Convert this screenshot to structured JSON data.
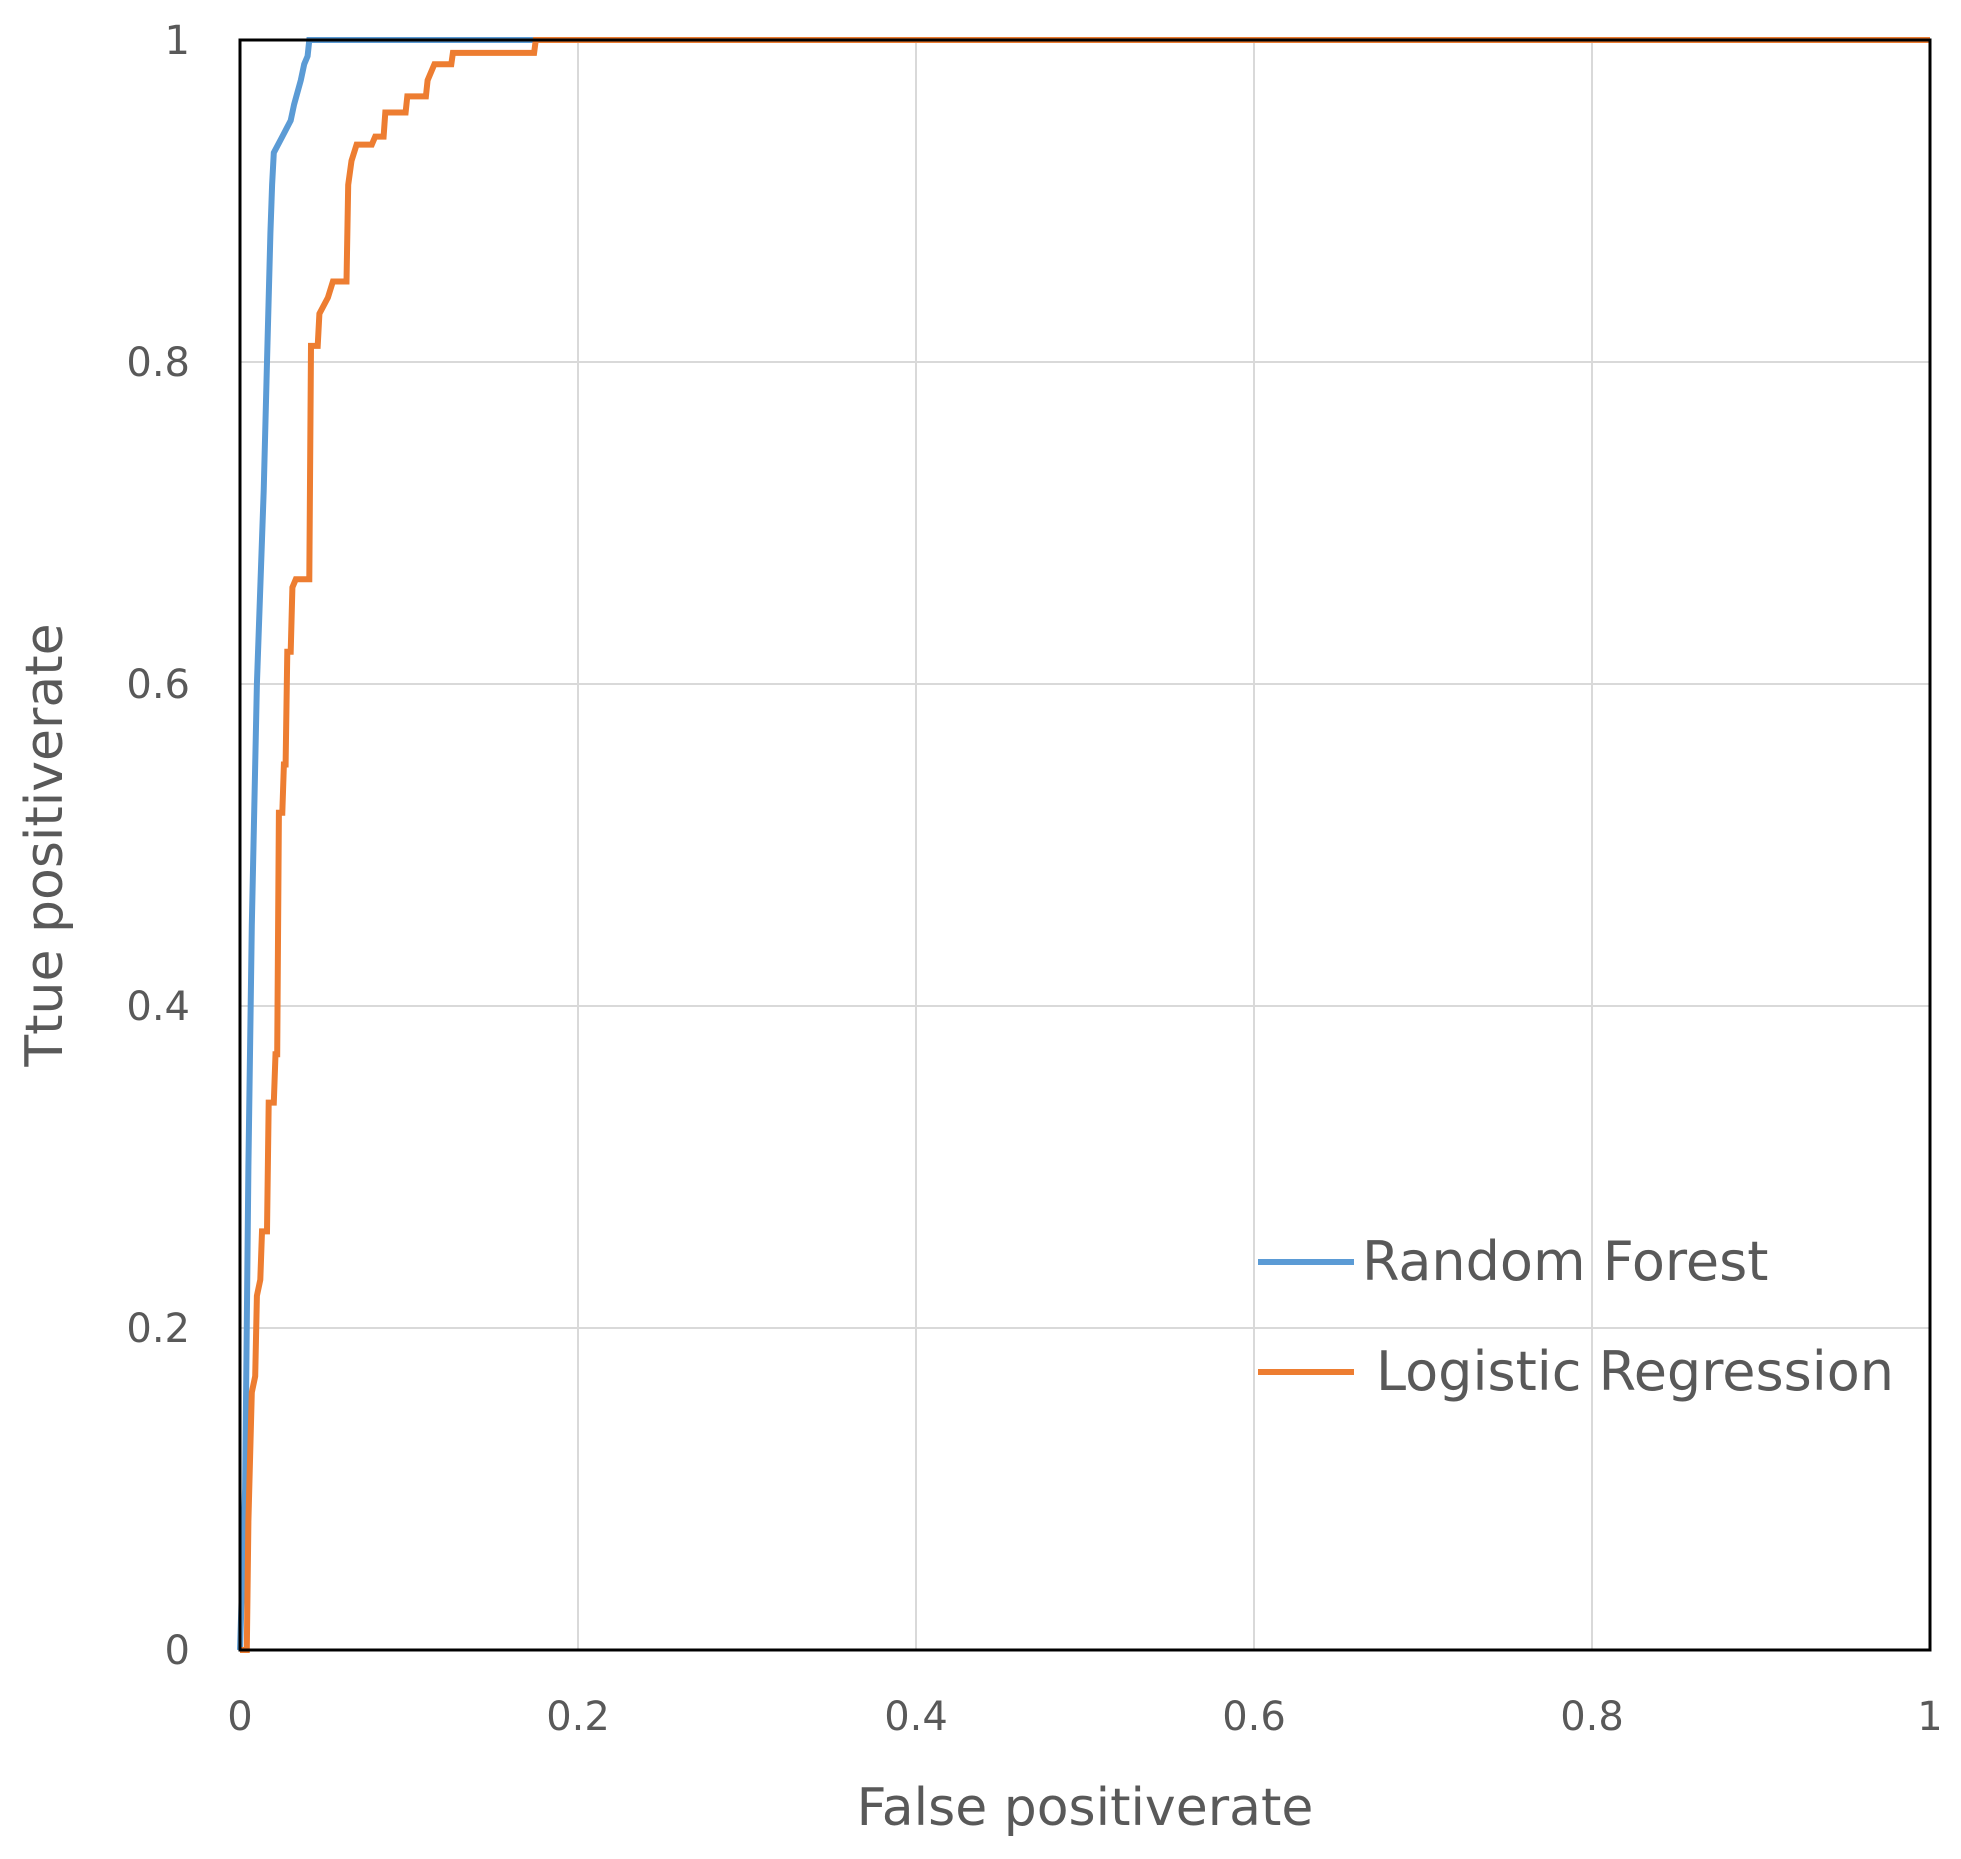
{
  "chart_data": {
    "type": "line",
    "xlabel": "False positiverate",
    "ylabel": "Ttue positiverate",
    "xlim": [
      0,
      1
    ],
    "ylim": [
      0,
      1
    ],
    "x_ticks": [
      "0",
      "0.2",
      "0.4",
      "0.6",
      "0.8",
      "1"
    ],
    "y_ticks": [
      "0",
      "0.2",
      "0.4",
      "0.6",
      "0.8",
      "1"
    ],
    "grid": true,
    "legend_position": "bottom-right",
    "series": [
      {
        "name": "Random Forest",
        "color": "#5b9bd5",
        "points": [
          [
            0,
            0
          ],
          [
            0.003,
            0.1
          ],
          [
            0.005,
            0.3
          ],
          [
            0.007,
            0.45
          ],
          [
            0.01,
            0.6
          ],
          [
            0.014,
            0.72
          ],
          [
            0.016,
            0.8
          ],
          [
            0.018,
            0.88
          ],
          [
            0.019,
            0.91
          ],
          [
            0.02,
            0.93
          ],
          [
            0.025,
            0.94
          ],
          [
            0.03,
            0.95
          ],
          [
            0.032,
            0.96
          ],
          [
            0.036,
            0.975
          ],
          [
            0.038,
            0.985
          ],
          [
            0.04,
            0.99
          ],
          [
            0.041,
            1.0
          ],
          [
            0.1,
            1.0
          ],
          [
            0.18,
            1.0
          ],
          [
            1,
            1.0
          ]
        ]
      },
      {
        "name": "Logistic Regression",
        "color": "#ed7d31",
        "points": [
          [
            0,
            0
          ],
          [
            0.004,
            0
          ],
          [
            0.005,
            0.08
          ],
          [
            0.007,
            0.16
          ],
          [
            0.009,
            0.17
          ],
          [
            0.01,
            0.22
          ],
          [
            0.012,
            0.23
          ],
          [
            0.013,
            0.26
          ],
          [
            0.016,
            0.26
          ],
          [
            0.017,
            0.34
          ],
          [
            0.02,
            0.34
          ],
          [
            0.021,
            0.37
          ],
          [
            0.022,
            0.37
          ],
          [
            0.023,
            0.52
          ],
          [
            0.025,
            0.52
          ],
          [
            0.026,
            0.55
          ],
          [
            0.027,
            0.55
          ],
          [
            0.028,
            0.62
          ],
          [
            0.03,
            0.62
          ],
          [
            0.031,
            0.66
          ],
          [
            0.033,
            0.665
          ],
          [
            0.041,
            0.665
          ],
          [
            0.042,
            0.81
          ],
          [
            0.046,
            0.81
          ],
          [
            0.047,
            0.83
          ],
          [
            0.052,
            0.84
          ],
          [
            0.055,
            0.85
          ],
          [
            0.063,
            0.85
          ],
          [
            0.064,
            0.91
          ],
          [
            0.066,
            0.925
          ],
          [
            0.069,
            0.935
          ],
          [
            0.078,
            0.935
          ],
          [
            0.08,
            0.94
          ],
          [
            0.085,
            0.94
          ],
          [
            0.086,
            0.955
          ],
          [
            0.098,
            0.955
          ],
          [
            0.099,
            0.965
          ],
          [
            0.11,
            0.965
          ],
          [
            0.111,
            0.975
          ],
          [
            0.115,
            0.985
          ],
          [
            0.125,
            0.985
          ],
          [
            0.126,
            0.992
          ],
          [
            0.174,
            0.992
          ],
          [
            0.175,
            1.0
          ],
          [
            0.3,
            1.0
          ],
          [
            1,
            1.0
          ]
        ]
      }
    ]
  }
}
